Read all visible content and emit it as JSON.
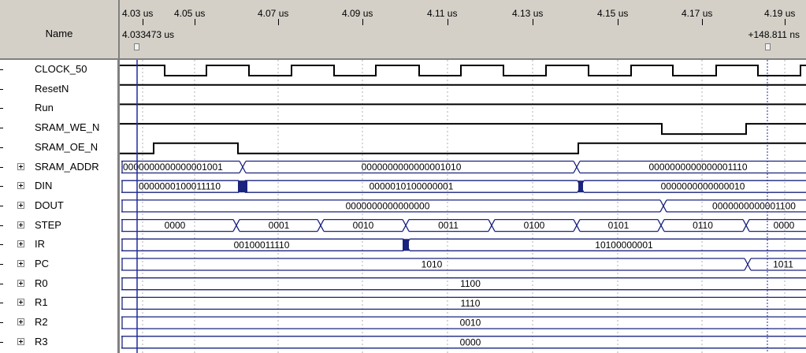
{
  "window": {
    "name_header": "Name"
  },
  "timebar": {
    "labels": [
      "4.03 us",
      "4.05 us",
      "4.07 us",
      "4.09 us",
      "4.11 us",
      "4.13 us",
      "4.15 us",
      "4.17 us",
      "4.19 us"
    ],
    "cursor_time": "4.033473 us",
    "delta_time": "+148.811 ns"
  },
  "signals": [
    {
      "name": "CLOCK_50",
      "type": "bit"
    },
    {
      "name": "ResetN",
      "type": "bit"
    },
    {
      "name": "Run",
      "type": "bit"
    },
    {
      "name": "SRAM_WE_N",
      "type": "bit"
    },
    {
      "name": "SRAM_OE_N",
      "type": "bit"
    },
    {
      "name": "SRAM_ADDR",
      "type": "bus"
    },
    {
      "name": "DIN",
      "type": "bus"
    },
    {
      "name": "DOUT",
      "type": "bus"
    },
    {
      "name": "STEP",
      "type": "bus"
    },
    {
      "name": "IR",
      "type": "bus"
    },
    {
      "name": "PC",
      "type": "bus"
    },
    {
      "name": "R0",
      "type": "bus"
    },
    {
      "name": "R1",
      "type": "bus"
    },
    {
      "name": "R2",
      "type": "bus"
    },
    {
      "name": "R3",
      "type": "bus"
    }
  ],
  "bus_values": {
    "SRAM_ADDR": [
      "0000000000000001001",
      "0000000000000001010",
      "0000000000000001110"
    ],
    "DIN": [
      "0000000100011110",
      "0000010100000001",
      "0000000000000010"
    ],
    "DOUT": [
      "0000000000000000",
      "0000000000001100"
    ],
    "STEP": [
      "0000",
      "0001",
      "0010",
      "0011",
      "0100",
      "0101",
      "0110",
      "0000"
    ],
    "IR": [
      "00100011110",
      "10100000001"
    ],
    "PC": [
      "1010",
      "1011"
    ],
    "R0": [
      "1100"
    ],
    "R1": [
      "1110"
    ],
    "R2": [
      "0010"
    ],
    "R3": [
      "0000"
    ]
  },
  "colors": {
    "waveform": "#000000",
    "bus_line": "#1a237e",
    "cursor": "#1f2a9e",
    "grid": "#b0b0b0",
    "header_bg": "#d4d0c8",
    "transition_fill": "#1a237e"
  }
}
